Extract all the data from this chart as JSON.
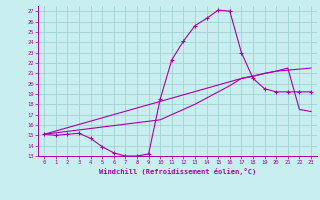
{
  "xlabel": "Windchill (Refroidissement éolien,°C)",
  "xlim": [
    -0.5,
    23.5
  ],
  "ylim": [
    13,
    27.5
  ],
  "xticks": [
    0,
    1,
    2,
    3,
    4,
    5,
    6,
    7,
    8,
    9,
    10,
    11,
    12,
    13,
    14,
    15,
    16,
    17,
    18,
    19,
    20,
    21,
    22,
    23
  ],
  "yticks": [
    13,
    14,
    15,
    16,
    17,
    18,
    19,
    20,
    21,
    22,
    23,
    24,
    25,
    26,
    27
  ],
  "bg_color": "#c8eef0",
  "line_color": "#aa00aa",
  "grid_color": "#99cccc",
  "curve1_x": [
    0,
    1,
    2,
    3,
    4,
    5,
    6,
    7,
    8,
    9,
    10,
    11,
    12,
    13,
    14,
    15,
    16,
    17,
    18,
    19,
    20,
    21,
    22,
    23
  ],
  "curve1_y": [
    15.1,
    15.0,
    15.1,
    15.2,
    14.7,
    13.9,
    13.3,
    13.0,
    13.0,
    13.2,
    18.5,
    22.3,
    24.1,
    25.6,
    26.3,
    27.1,
    27.0,
    23.0,
    20.5,
    19.5,
    19.2,
    19.2,
    19.2,
    19.2
  ],
  "curve2_x": [
    0,
    10,
    11,
    12,
    13,
    14,
    15,
    16,
    17,
    20,
    21,
    22,
    23
  ],
  "curve2_y": [
    15.1,
    16.5,
    17.0,
    17.5,
    18.0,
    18.6,
    19.2,
    19.8,
    20.5,
    21.2,
    21.3,
    21.4,
    21.5
  ],
  "curve3_x": [
    0,
    17,
    18,
    19,
    20,
    21,
    22,
    23
  ],
  "curve3_y": [
    15.1,
    20.5,
    20.7,
    21.0,
    21.2,
    21.5,
    17.5,
    17.3
  ]
}
